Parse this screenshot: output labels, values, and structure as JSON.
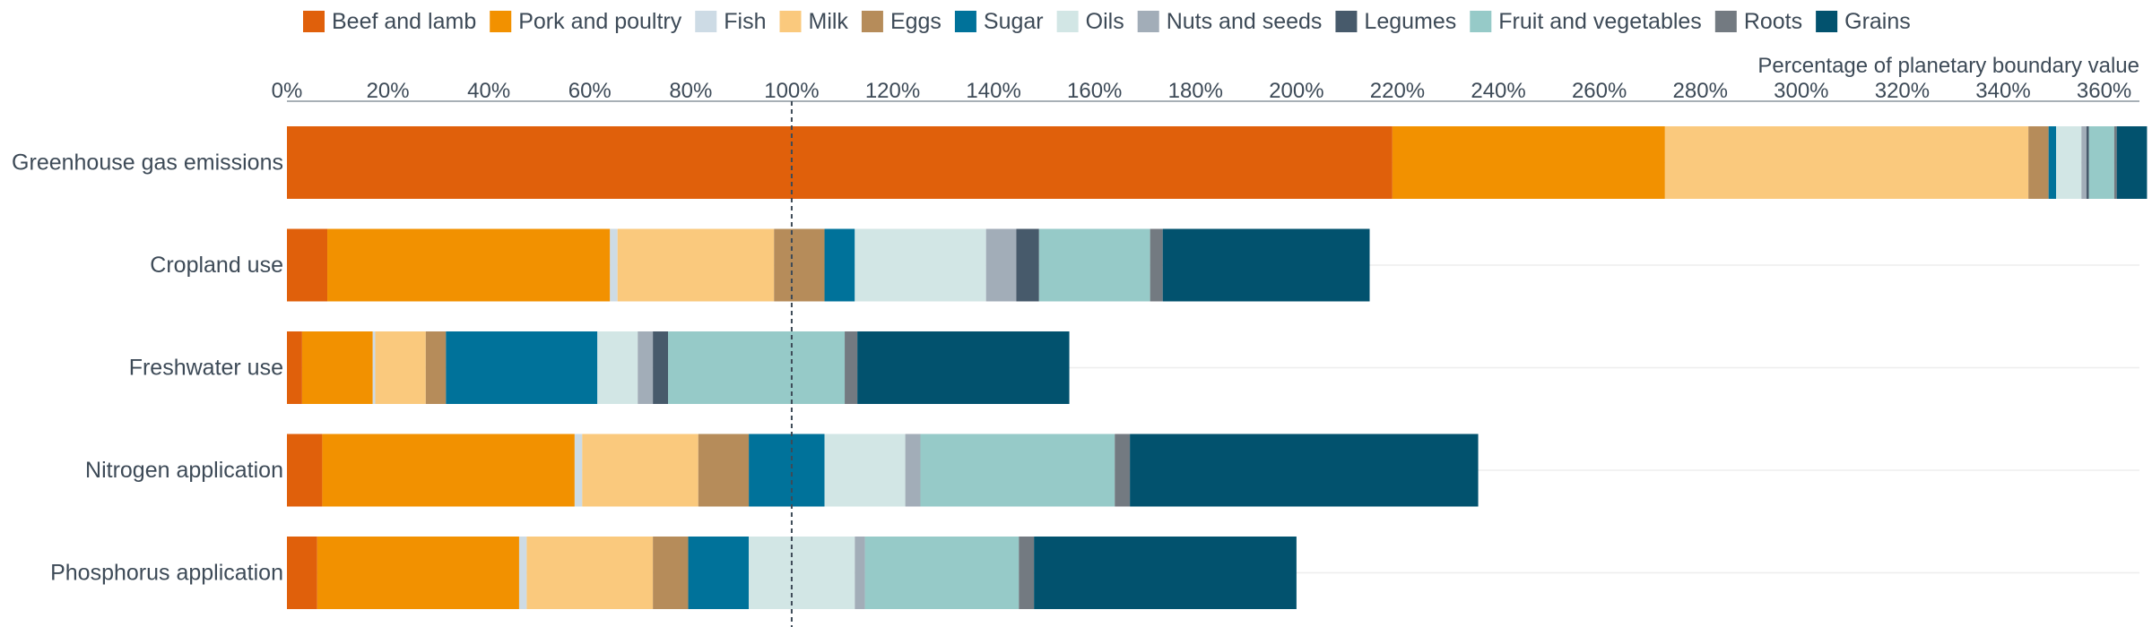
{
  "chart_data": {
    "type": "bar",
    "orientation": "horizontal",
    "stacked": true,
    "xlabel": "Percentage of planetary boundary value",
    "xlim": [
      0,
      367
    ],
    "xticks": [
      0,
      20,
      40,
      60,
      80,
      100,
      120,
      140,
      160,
      180,
      200,
      220,
      240,
      260,
      280,
      300,
      320,
      340,
      360
    ],
    "tick_suffix": "%",
    "reference_line": 100,
    "legend_position": "top",
    "grid": "horizontal row lines",
    "categories": [
      "Greenhouse gas emissions",
      "Cropland use",
      "Freshwater use",
      "Nitrogen application",
      "Phosphorus application"
    ],
    "series": [
      {
        "name": "Beef and lamb",
        "color": "#e0600b",
        "values": [
          219,
          8,
          3,
          7,
          6
        ]
      },
      {
        "name": "Pork and poultry",
        "color": "#f29100",
        "values": [
          54,
          56,
          14,
          50,
          40
        ]
      },
      {
        "name": "Fish",
        "color": "#cddbe5",
        "values": [
          0,
          1.5,
          0.5,
          1.5,
          1.5
        ]
      },
      {
        "name": "Milk",
        "color": "#fac97d",
        "values": [
          72,
          31,
          10,
          23,
          25
        ]
      },
      {
        "name": "Eggs",
        "color": "#b68c5a",
        "values": [
          4,
          10,
          4,
          10,
          7
        ]
      },
      {
        "name": "Sugar",
        "color": "#00729a",
        "values": [
          1.5,
          6,
          30,
          15,
          12
        ]
      },
      {
        "name": "Oils",
        "color": "#d2e6e5",
        "values": [
          5,
          26,
          8,
          16,
          21
        ]
      },
      {
        "name": "Nuts and seeds",
        "color": "#a2adb8",
        "values": [
          1,
          6,
          3,
          3,
          2
        ]
      },
      {
        "name": "Legumes",
        "color": "#475a6b",
        "values": [
          0.5,
          4.5,
          3,
          0,
          0
        ]
      },
      {
        "name": "Fruit and vegetables",
        "color": "#96cac8",
        "values": [
          5,
          22,
          35,
          38.5,
          30.5
        ]
      },
      {
        "name": "Roots",
        "color": "#737a81",
        "values": [
          0.5,
          2.5,
          2.5,
          3,
          3
        ]
      },
      {
        "name": "Grains",
        "color": "#02526e",
        "values": [
          6,
          41,
          42,
          69,
          52
        ]
      }
    ]
  }
}
